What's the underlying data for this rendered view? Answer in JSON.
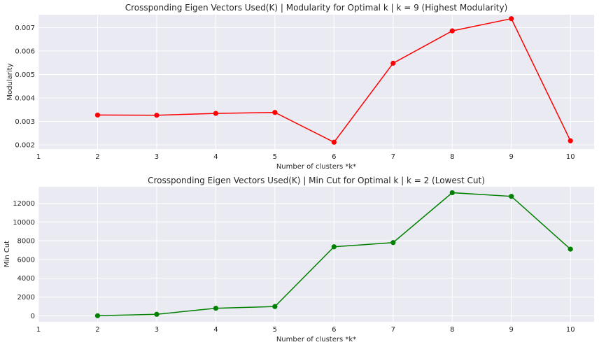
{
  "chart_data": [
    {
      "type": "line",
      "title": "Crossponding Eigen Vectors Used(K) | Modularity for Optimal k | k = 9 (Highest Modularity)",
      "xlabel": "Number of clusters *k*",
      "ylabel": "Modularity",
      "x_ticks": [
        1,
        2,
        3,
        4,
        5,
        6,
        7,
        8,
        9,
        10
      ],
      "y_ticks": [
        0.002,
        0.003,
        0.004,
        0.005,
        0.006,
        0.007
      ],
      "y_tick_labels": [
        "0.002",
        "0.003",
        "0.004",
        "0.005",
        "0.006",
        "0.007"
      ],
      "xlim": [
        1,
        10.4
      ],
      "ylim": [
        0.00182,
        0.00755
      ],
      "grid": true,
      "color": "#ff0000",
      "x": [
        2,
        3,
        4,
        5,
        6,
        7,
        8,
        9,
        10
      ],
      "values": [
        0.00327,
        0.00326,
        0.00334,
        0.00338,
        0.00211,
        0.00548,
        0.00686,
        0.00738,
        0.00217
      ]
    },
    {
      "type": "line",
      "title": "Crossponding Eigen Vectors Used(K) | Min Cut for Optimal k | k = 2 (Lowest Cut)",
      "xlabel": "Number of clusters *k*",
      "ylabel": "Min Cut",
      "x_ticks": [
        1,
        2,
        3,
        4,
        5,
        6,
        7,
        8,
        9,
        10
      ],
      "y_ticks": [
        0,
        2000,
        4000,
        6000,
        8000,
        10000,
        12000
      ],
      "y_tick_labels": [
        "0",
        "2000",
        "4000",
        "6000",
        "8000",
        "10000",
        "12000"
      ],
      "xlim": [
        1,
        10.4
      ],
      "ylim": [
        -650,
        13750
      ],
      "grid": true,
      "color": "#008000",
      "x": [
        2,
        3,
        4,
        5,
        6,
        7,
        8,
        9,
        10
      ],
      "values": [
        0,
        150,
        800,
        980,
        7350,
        7800,
        13120,
        12730,
        7100
      ]
    }
  ]
}
